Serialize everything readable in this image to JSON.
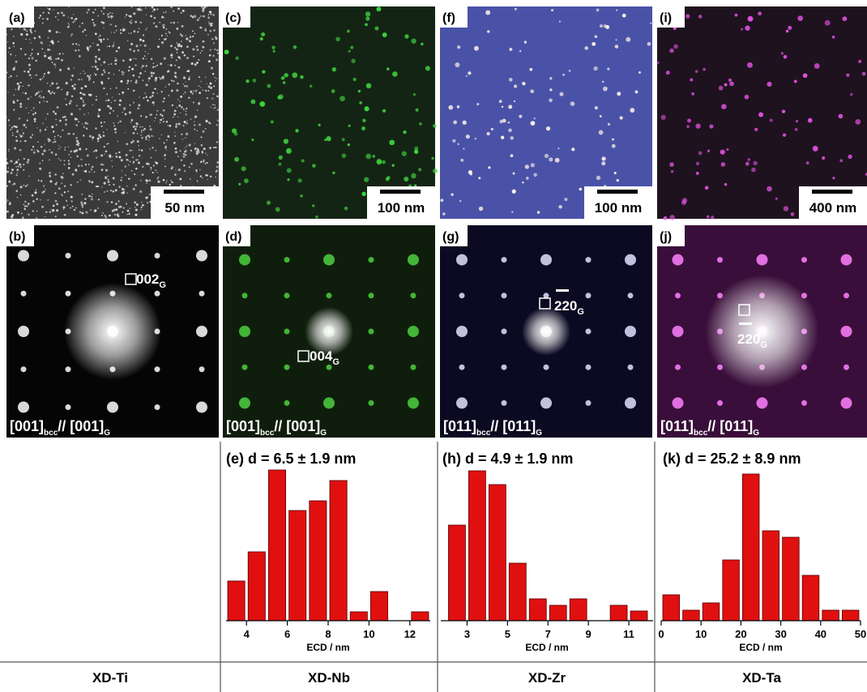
{
  "columns": [
    "XD-Ti",
    "XD-Nb",
    "XD-Zr",
    "XD-Ta"
  ],
  "micrographs": [
    {
      "label": "(a)",
      "scale_bar": "50 nm"
    },
    {
      "label": "(c)",
      "scale_bar": "100 nm"
    },
    {
      "label": "(f)",
      "scale_bar": "100 nm"
    },
    {
      "label": "(i)",
      "scale_bar": "400 nm"
    }
  ],
  "diffraction": [
    {
      "label": "(b)",
      "spot": "002",
      "spot_sub": "G",
      "zone_a": "[001]",
      "zone_a_sub": "bcc",
      "zone_b": "// [001]",
      "zone_b_sub": "G"
    },
    {
      "label": "(d)",
      "spot": "004",
      "spot_sub": "G",
      "zone_a": "[001]",
      "zone_a_sub": "bcc",
      "zone_b": "// [001]",
      "zone_b_sub": "G"
    },
    {
      "label": "(g)",
      "spot": "220",
      "spot_sub": "G",
      "zone_a": "[011]",
      "zone_a_sub": "bcc",
      "zone_b": "// [011]",
      "zone_b_sub": "G"
    },
    {
      "label": "(j)",
      "spot": "220",
      "spot_sub": "G",
      "zone_a": "[011]",
      "zone_a_sub": "bcc",
      "zone_b": "// [011]",
      "zone_b_sub": "G"
    }
  ],
  "chart_data": [
    {
      "type": "histogram",
      "title": "(e) d = 6.5 ± 1.9 nm",
      "xlabel": "ECD / nm",
      "color": "#e01010",
      "bins": [
        3,
        4,
        5,
        6,
        7,
        8,
        9,
        10,
        11,
        12,
        13
      ],
      "values": [
        49,
        85,
        186,
        136,
        148,
        173,
        11,
        36,
        0,
        11
      ],
      "xlim": [
        3,
        13
      ],
      "xticks": [
        4,
        6,
        8,
        10,
        12
      ],
      "ylim": [
        0,
        190
      ]
    },
    {
      "type": "histogram",
      "title": "(h) d = 4.9 ± 1.9 nm",
      "xlabel": "ECD / nm",
      "color": "#e01010",
      "bins": [
        2,
        3,
        4,
        5,
        6,
        7,
        8,
        9,
        10,
        11,
        12
      ],
      "values": [
        118,
        185,
        168,
        71,
        27,
        19,
        27,
        0,
        19,
        12
      ],
      "xlim": [
        1.7,
        12.2
      ],
      "xticks": [
        3,
        5,
        7,
        9,
        11
      ],
      "ylim": [
        0,
        190
      ]
    },
    {
      "type": "histogram",
      "title": "(k) d = 25.2 ± 8.9 nm",
      "xlabel": "ECD / nm",
      "color": "#e01010",
      "bins": [
        0,
        5,
        10,
        15,
        20,
        25,
        30,
        35,
        40,
        45,
        50
      ],
      "values": [
        32,
        13,
        22,
        75,
        181,
        111,
        103,
        56,
        13,
        13
      ],
      "xlim": [
        0,
        50
      ],
      "xticks": [
        0,
        10,
        20,
        30,
        40,
        50
      ],
      "ylim": [
        0,
        190
      ]
    }
  ]
}
